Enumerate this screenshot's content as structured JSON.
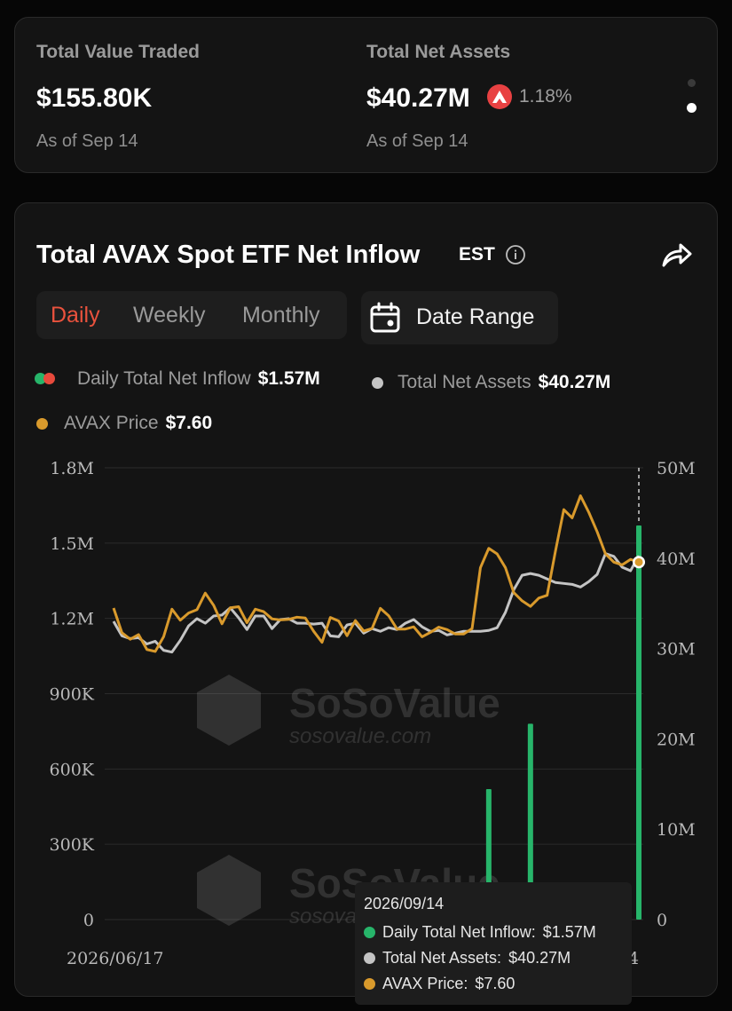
{
  "stats": {
    "traded": {
      "label": "Total Value Traded",
      "value": "$155.80K",
      "date": "As of Sep 14"
    },
    "assets": {
      "label": "Total Net Assets",
      "value": "$40.27M",
      "change": "1.18%",
      "date": "As of Sep 14"
    }
  },
  "chart_card": {
    "title": "Total AVAX Spot ETF Net Inflow",
    "timezone": "EST",
    "tabs": [
      "Daily",
      "Weekly",
      "Monthly"
    ],
    "active_tab": "Daily",
    "date_range_label": "Date Range",
    "legend": {
      "inflow": {
        "label": "Daily Total Net Inflow",
        "value": "$1.57M"
      },
      "assets": {
        "label": "Total Net Assets",
        "value": "$40.27M"
      },
      "price": {
        "label": "AVAX Price",
        "value": "$7.60"
      }
    },
    "watermark": {
      "brand": "SoSoValue",
      "url": "sosovalue.com"
    },
    "tooltip": {
      "date": "2026/09/14",
      "rows": [
        {
          "label": "Daily Total Net Inflow:",
          "value": "$1.57M",
          "color": "#27b56a"
        },
        {
          "label": "Total Net Assets:",
          "value": "$40.27M",
          "color": "#c4c4c4"
        },
        {
          "label": "AVAX Price:",
          "value": "$7.60",
          "color": "#d99a2c"
        }
      ]
    }
  },
  "colors": {
    "inflow": "#27b56a",
    "outflow": "#e84a3c",
    "assets": "#c4c4c4",
    "price": "#d99a2c",
    "avax": "#e84142"
  },
  "chart_data": {
    "type": "bar",
    "x_start_label": "2026/06/17",
    "x_end_label_partial": "4",
    "left_axis": {
      "ticks": [
        "0",
        "300K",
        "600K",
        "900K",
        "1.2M",
        "1.5M",
        "1.8M"
      ],
      "range": [
        0,
        1800000
      ]
    },
    "right_axis": {
      "ticks": [
        "0",
        "10M",
        "20M",
        "30M",
        "40M",
        "50M"
      ],
      "range": [
        0,
        50000000
      ]
    },
    "num_points": 64,
    "series": [
      {
        "name": "Daily Total Net Inflow",
        "kind": "bar",
        "points": [
          {
            "index": 45,
            "value": 520000
          },
          {
            "index": 50,
            "value": 780000
          },
          {
            "index": 63,
            "value": 1570000
          }
        ]
      },
      {
        "name": "Total Net Assets",
        "kind": "line",
        "values": [
          33.0,
          31.4,
          31.1,
          31.2,
          30.5,
          30.8,
          29.8,
          29.6,
          30.9,
          32.5,
          33.3,
          32.8,
          33.6,
          33.7,
          34.5,
          33.4,
          32.1,
          33.6,
          33.6,
          32.2,
          33.2,
          33.3,
          32.8,
          32.8,
          32.7,
          32.8,
          31.4,
          31.3,
          32.6,
          32.8,
          31.7,
          32.2,
          31.9,
          32.3,
          32.1,
          32.8,
          33.2,
          32.4,
          31.9,
          32.0,
          31.5,
          31.7,
          31.9,
          31.9,
          31.9,
          32.0,
          32.3,
          34.0,
          36.5,
          38.1,
          38.3,
          38.1,
          37.7,
          37.3,
          37.2,
          37.1,
          36.8,
          37.4,
          38.2,
          40.5,
          40.2,
          39.0,
          38.6,
          40.27
        ]
      },
      {
        "name": "AVAX Price",
        "kind": "line",
        "values": [
          5.94,
          5.05,
          4.81,
          4.98,
          4.44,
          4.37,
          4.9,
          5.9,
          5.5,
          5.76,
          5.88,
          6.48,
          6.04,
          5.37,
          5.95,
          5.99,
          5.41,
          5.9,
          5.81,
          5.55,
          5.51,
          5.53,
          5.61,
          5.58,
          5.1,
          4.7,
          5.6,
          5.47,
          4.94,
          5.49,
          5.11,
          5.2,
          5.93,
          5.66,
          5.18,
          5.18,
          5.26,
          4.9,
          5.06,
          5.25,
          5.16,
          5.0,
          5.0,
          5.2,
          7.4,
          8.1,
          7.9,
          7.4,
          6.5,
          6.2,
          6.0,
          6.3,
          6.4,
          8.0,
          9.5,
          9.2,
          10.0,
          9.4,
          8.7,
          7.9,
          7.6,
          7.5,
          7.7,
          7.6
        ]
      }
    ],
    "highlight_index": 63
  }
}
